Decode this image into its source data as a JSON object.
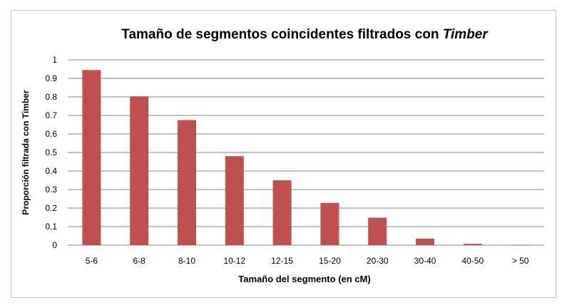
{
  "chart_data": {
    "type": "bar",
    "title_main": "Tamaño de segmentos coincidentes filtrados con ",
    "title_emph": "Timber",
    "xlabel": "Tamaño del segmento (en cM)",
    "ylabel": "Proporción filtrada con Timber",
    "categories": [
      "5-6",
      "6-8",
      "8-10",
      "10-12",
      "12-15",
      "15-20",
      "20-30",
      "30-40",
      "40-50",
      "> 50"
    ],
    "values": [
      0.945,
      0.803,
      0.675,
      0.48,
      0.35,
      0.228,
      0.148,
      0.035,
      0.007,
      0.001
    ],
    "ylim": [
      0,
      1
    ],
    "yticks": [
      "0",
      "0.1",
      "0.2",
      "0.3",
      "0.4",
      "0.5",
      "0.6",
      "0.7",
      "0.8",
      "0.9",
      "1"
    ],
    "grid": true,
    "bar_color": "#c0504d",
    "grid_color": "#868686"
  }
}
